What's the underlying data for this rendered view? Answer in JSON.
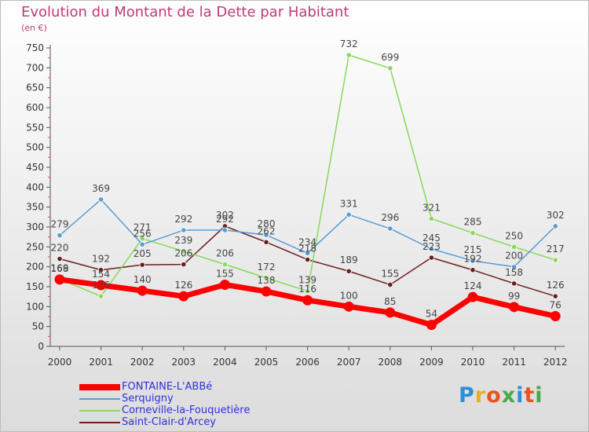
{
  "title": "Evolution du Montant de la Dette par Habitant",
  "unit": "(en €)",
  "logo": {
    "letters": [
      "P",
      "r",
      "o",
      "x",
      "i",
      "t",
      "i"
    ],
    "colors": [
      "#2a8fd8",
      "#e8b020",
      "#e8541e",
      "#4aa84a",
      "#2a8fd8",
      "#e8541e",
      "#4aa84a"
    ]
  },
  "chart_data": {
    "type": "line",
    "title": "Evolution du Montant de la Dette par Habitant",
    "ylabel": "(en €)",
    "xlabel": "",
    "ylim": [
      0,
      750
    ],
    "yticks": [
      0,
      50,
      100,
      150,
      200,
      250,
      300,
      350,
      400,
      450,
      500,
      550,
      600,
      650,
      700,
      750
    ],
    "x": [
      "2000",
      "2001",
      "2002",
      "2003",
      "2004",
      "2005",
      "2006",
      "2007",
      "2008",
      "2009",
      "2010",
      "2011",
      "2012"
    ],
    "grid": false,
    "legend_position": "bottom-left",
    "series": [
      {
        "name": "Saint-Clair-d'Arcey",
        "color": "#6b1e1e",
        "thick": false,
        "labels": false,
        "values": [
          220,
          192,
          205,
          206,
          302,
          262,
          218,
          189,
          155,
          223,
          192,
          158,
          126
        ]
      },
      {
        "name": "Corneville-la-Fouquetière",
        "color": "#88d85a",
        "thick": false,
        "labels": true,
        "values": [
          169,
          126,
          271,
          239,
          206,
          172,
          139,
          732,
          699,
          321,
          285,
          250,
          217
        ]
      },
      {
        "name": "Serquigny",
        "color": "#5b9bd2",
        "thick": false,
        "labels": true,
        "values": [
          279,
          369,
          256,
          292,
          292,
          280,
          234,
          331,
          296,
          245,
          215,
          200,
          302
        ]
      },
      {
        "name": "FONTAINE-L'ABBé",
        "color": "#ff0000",
        "thick": true,
        "labels": true,
        "values": [
          168,
          154,
          140,
          126,
          155,
          138,
          116,
          100,
          85,
          54,
          124,
          99,
          76
        ]
      }
    ],
    "label_texts": {
      "Saint-Clair-d'Arcey": [
        "220",
        "192",
        "205",
        "206",
        "302",
        "262",
        "218",
        "189",
        "155",
        "223",
        "192",
        "158",
        "126"
      ],
      "Corneville-la-Fouquetière": [
        "169",
        "126",
        "271",
        "239",
        "206",
        "172",
        "139",
        "732",
        "699",
        "321",
        "285",
        "250",
        "217"
      ],
      "Serquigny": [
        "279",
        "369",
        "256",
        "292",
        "292",
        "280",
        "234",
        "331",
        "296",
        "245",
        "215",
        "200",
        "302"
      ],
      "FONTAINE-L'ABBé": [
        "168",
        "154",
        "140",
        "126",
        "155",
        "138",
        "116",
        "100",
        "85",
        "54",
        "124",
        "99",
        "76"
      ]
    },
    "legend_order": [
      "FONTAINE-L'ABBé",
      "Serquigny",
      "Corneville-la-Fouquetière",
      "Saint-Clair-d'Arcey"
    ]
  }
}
